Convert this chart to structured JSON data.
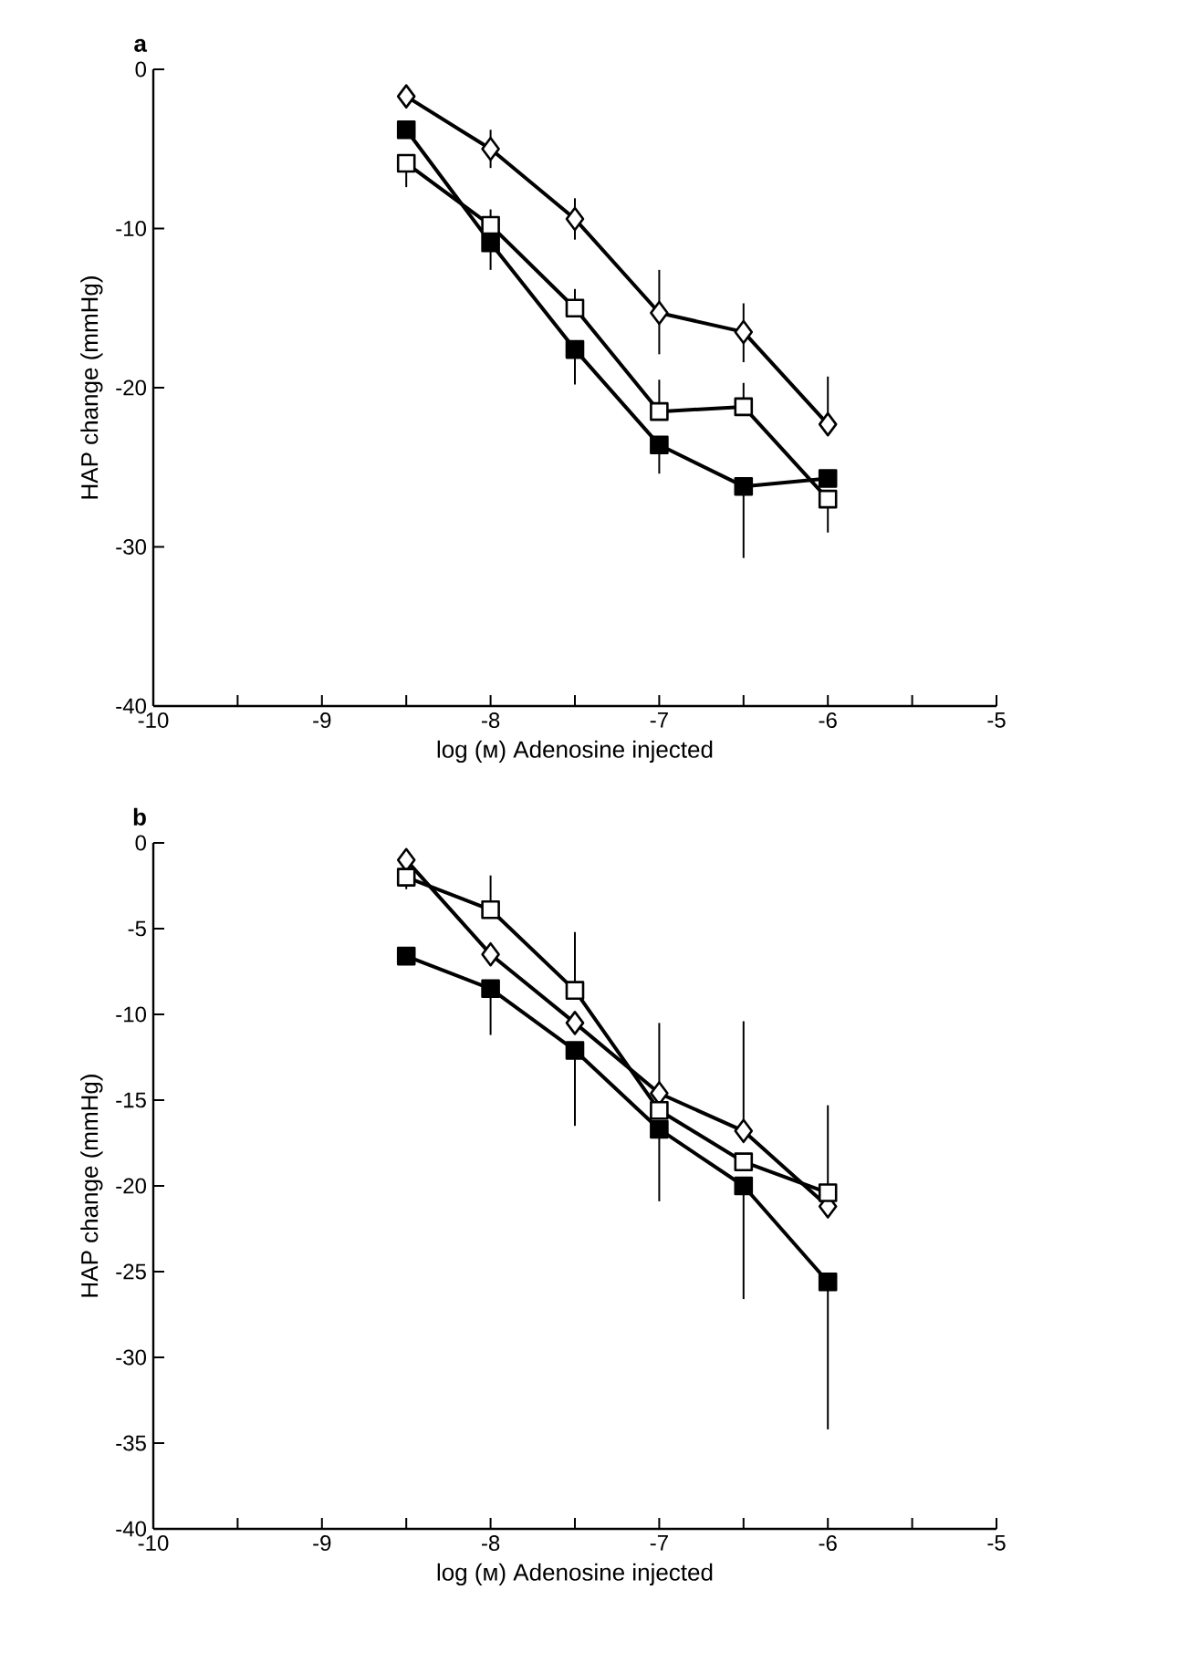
{
  "chart_data": [
    {
      "type": "line",
      "title": "a",
      "xlabel": "log (м) Adenosine injected",
      "ylabel": "HAP change (mmHg)",
      "x": [
        -8.5,
        -8,
        -7.5,
        -7,
        -6.5,
        -6
      ],
      "series": [
        {
          "color": "#000000",
          "marker": "diamond",
          "colors": [
            "#ffffff",
            "#ffffff",
            "#ffffff",
            "#ffffff",
            "#ffffff",
            "#ffffff"
          ],
          "values": [
            -1.7,
            -5.0,
            -9.4,
            -15.3,
            -16.5,
            -22.3
          ],
          "errors": [
            null,
            1.2,
            1.3,
            [
              -17.9,
              -12.6
            ],
            [
              -18.4,
              -14.7
            ],
            [
              -22.3,
              -19.3
            ]
          ]
        },
        {
          "color": "#000000",
          "marker": "square",
          "colors": [
            "#ffffff",
            "#ffffff",
            "#ffffff",
            "#ffffff",
            "#ffffff",
            "#ffffff"
          ],
          "values": [
            -5.9,
            -9.8,
            -15.0,
            -21.5,
            -21.2,
            -27.0
          ],
          "errors": [
            [
              -7.4,
              -5.9
            ],
            [
              -9.8,
              -8.8
            ],
            [
              -15.0,
              -13.8
            ],
            [
              -21.5,
              -19.5
            ],
            [
              -21.2,
              -19.7
            ],
            [
              -29.1,
              -27.0
            ]
          ]
        },
        {
          "color": "#000000",
          "marker": "square",
          "colors": [
            "#000000",
            "#000000",
            "#000000",
            "#000000",
            "#000000",
            "#000000"
          ],
          "values": [
            -3.8,
            -10.9,
            -17.6,
            -23.6,
            -26.2,
            -25.7
          ],
          "errors": [
            null,
            [
              -12.6,
              -10.9
            ],
            [
              -19.8,
              -17.6
            ],
            [
              -25.4,
              -23.6
            ],
            [
              -30.7,
              -26.2
            ],
            null
          ]
        }
      ],
      "xlim": [
        -10,
        -5
      ],
      "ylim": [
        -40,
        0
      ],
      "xticks": [
        -10,
        {
          "value": -9.5,
          "label": null
        },
        -9,
        {
          "value": -8.5,
          "label": null
        },
        -8,
        {
          "value": -7.5,
          "label": null
        },
        -7,
        {
          "value": -6.5,
          "label": null
        },
        -6,
        {
          "value": -5.5,
          "label": null
        },
        -5
      ],
      "yticks": [
        -40,
        -30,
        -20,
        -10,
        0
      ],
      "line_style": "solid",
      "grid": false
    },
    {
      "type": "line",
      "title": "b",
      "xlabel": "log (м) Adenosine injected",
      "ylabel": "HAP change (mmHg)",
      "x": [
        -8.5,
        -8,
        -7.5,
        -7,
        -6.5,
        -6
      ],
      "series": [
        {
          "color": "#000000",
          "marker": "diamond",
          "colors": [
            "#ffffff",
            "#ffffff",
            "#ffffff",
            "#ffffff",
            "#ffffff",
            "#ffffff"
          ],
          "values": [
            -1.0,
            -6.5,
            -10.5,
            -14.6,
            -16.8,
            -21.2
          ],
          "errors": [
            null,
            null,
            null,
            [
              -14.6,
              -10.5
            ],
            [
              -16.8,
              -10.4
            ],
            null
          ]
        },
        {
          "color": "#000000",
          "marker": "square",
          "colors": [
            "#ffffff",
            "#ffffff",
            "#ffffff",
            "#ffffff",
            "#ffffff",
            "#ffffff"
          ],
          "values": [
            -2.0,
            -3.9,
            -8.6,
            -15.6,
            -18.6,
            -20.4
          ],
          "errors": [
            [
              -2.7,
              -2.0
            ],
            [
              -3.9,
              -1.9
            ],
            [
              -8.6,
              -5.2
            ],
            null,
            null,
            [
              -20.4,
              -15.3
            ]
          ]
        },
        {
          "color": "#000000",
          "marker": "square",
          "colors": [
            "#000000",
            "#000000",
            "#000000",
            "#000000",
            "#000000",
            "#000000"
          ],
          "values": [
            -6.6,
            -8.5,
            -12.1,
            -16.7,
            -20.0,
            -25.6
          ],
          "errors": [
            null,
            [
              -11.2,
              -8.5
            ],
            [
              -16.5,
              -12.1
            ],
            [
              -20.9,
              -16.7
            ],
            [
              -26.6,
              -20.0
            ],
            [
              -34.2,
              -25.6
            ]
          ]
        }
      ],
      "xlim": [
        -10,
        -5
      ],
      "ylim": [
        -40,
        0
      ],
      "xticks": [
        -10,
        {
          "value": -9.5,
          "label": null
        },
        -9,
        {
          "value": -8.5,
          "label": null
        },
        -8,
        {
          "value": -7.5,
          "label": null
        },
        -7,
        {
          "value": -6.5,
          "label": null
        },
        -6,
        {
          "value": -5.5,
          "label": null
        },
        -5
      ],
      "yticks": [
        -40,
        -35,
        -30,
        -25,
        -20,
        -15,
        -10,
        -5,
        0
      ],
      "line_style": "solid",
      "grid": false
    }
  ]
}
